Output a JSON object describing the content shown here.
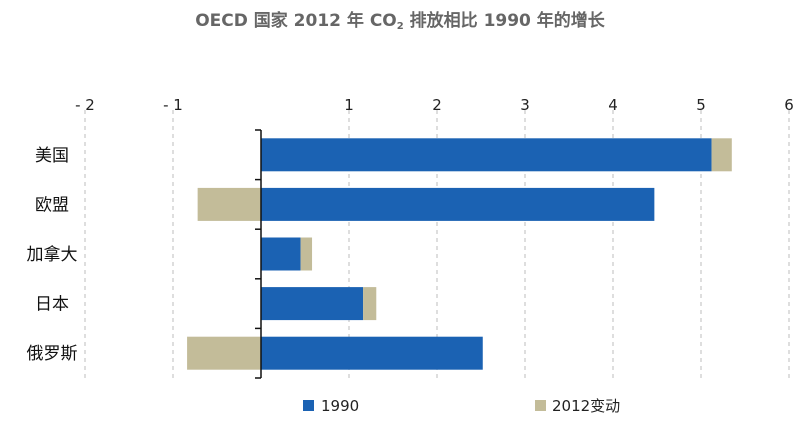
{
  "title": {
    "prefix": "OECD 国家 2012 年 CO",
    "subscript": "2",
    "suffix": " 排放相比 1990 年的增长"
  },
  "colors": {
    "series_1990": "#1b62b3",
    "series_change": "#c3bc99",
    "gridline": "#bdbdbd",
    "axis": "#111111"
  },
  "chart_data": {
    "type": "bar",
    "orientation": "horizontal",
    "stacked": true,
    "categories": [
      "美国",
      "欧盟",
      "加拿大",
      "日本",
      "俄罗斯"
    ],
    "series": [
      {
        "name": "1990",
        "values": [
          5.12,
          4.47,
          0.45,
          1.16,
          2.52
        ]
      },
      {
        "name": "2012变动",
        "values": [
          0.23,
          -0.72,
          0.13,
          0.15,
          -0.84
        ]
      }
    ],
    "xlim": [
      -2,
      6
    ],
    "xticks": [
      -2,
      -1,
      1,
      2,
      3,
      4,
      5,
      6
    ],
    "xtick_labels": [
      "- 2",
      "- 1",
      "1",
      "2",
      "3",
      "4",
      "5",
      "6"
    ],
    "grid": "vertical dashed",
    "legend_position": "bottom"
  }
}
